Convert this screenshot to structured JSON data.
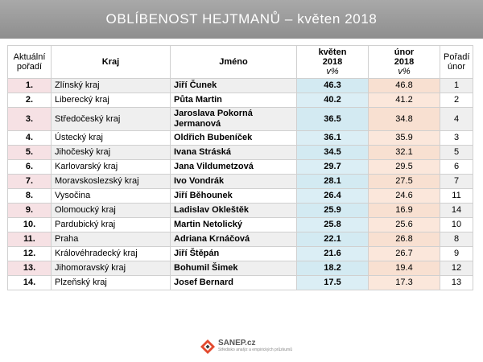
{
  "title": "OBLÍBENOST HEJTMANŮ – květen 2018",
  "columns": {
    "rank_line1": "Aktuální",
    "rank_line2": "pořadí",
    "region": "Kraj",
    "name": "Jméno",
    "may_line1": "květen",
    "may_line2": "2018",
    "may_unit": "v%",
    "feb_line1": "únor",
    "feb_line2": "2018",
    "feb_unit": "v%",
    "prev_line1": "Pořadí",
    "prev_line2": "únor"
  },
  "rows": [
    {
      "rank": "1.",
      "region": "Zlínský kraj",
      "name": "Jiří Čunek",
      "may": "46.3",
      "feb": "46.8",
      "prev": "1"
    },
    {
      "rank": "2.",
      "region": "Liberecký kraj",
      "name": "Půta Martin",
      "may": "40.2",
      "feb": "41.2",
      "prev": "2"
    },
    {
      "rank": "3.",
      "region": "Středočeský kraj",
      "name": "Jaroslava Pokorná Jermanová",
      "may": "36.5",
      "feb": "34.8",
      "prev": "4"
    },
    {
      "rank": "4.",
      "region": "Ústecký kraj",
      "name": "Oldřich Bubeníček",
      "may": "36.1",
      "feb": "35.9",
      "prev": "3"
    },
    {
      "rank": "5.",
      "region": "Jihočeský kraj",
      "name": "Ivana Stráská",
      "may": "34.5",
      "feb": "32.1",
      "prev": "5"
    },
    {
      "rank": "6.",
      "region": "Karlovarský kraj",
      "name": "Jana Vildumetzová",
      "may": "29.7",
      "feb": "29.5",
      "prev": "6"
    },
    {
      "rank": "7.",
      "region": "Moravskoslezský kraj",
      "name": "Ivo Vondrák",
      "may": "28.1",
      "feb": "27.5",
      "prev": "7"
    },
    {
      "rank": "8.",
      "region": "Vysočina",
      "name": "Jiří Běhounek",
      "may": "26.4",
      "feb": "24.6",
      "prev": "11"
    },
    {
      "rank": "9.",
      "region": "Olomoucký kraj",
      "name": "Ladislav Okleštěk",
      "may": "25.9",
      "feb": "16.9",
      "prev": "14"
    },
    {
      "rank": "10.",
      "region": "Pardubický kraj",
      "name": "Martin Netolický",
      "may": "25.8",
      "feb": "25.6",
      "prev": "10"
    },
    {
      "rank": "11.",
      "region": "Praha",
      "name": "Adriana Krnáčová",
      "may": "22.1",
      "feb": "26.8",
      "prev": "8"
    },
    {
      "rank": "12.",
      "region": "Královéhradecký kraj",
      "name": "Jiří Štěpán",
      "may": "21.6",
      "feb": "26.7",
      "prev": "9"
    },
    {
      "rank": "13.",
      "region": "Jihomoravský kraj",
      "name": "Bohumil Šimek",
      "may": "18.2",
      "feb": "19.4",
      "prev": "12"
    },
    {
      "rank": "14.",
      "region": "Plzeňský kraj",
      "name": "Josef Bernard",
      "may": "17.5",
      "feb": "17.3",
      "prev": "13"
    }
  ],
  "footer": {
    "logo_name": "SANEP.cz",
    "logo_sub": "Středisko analýz a empirických průzkumů",
    "logo_icon": "sanep-logo-icon"
  }
}
